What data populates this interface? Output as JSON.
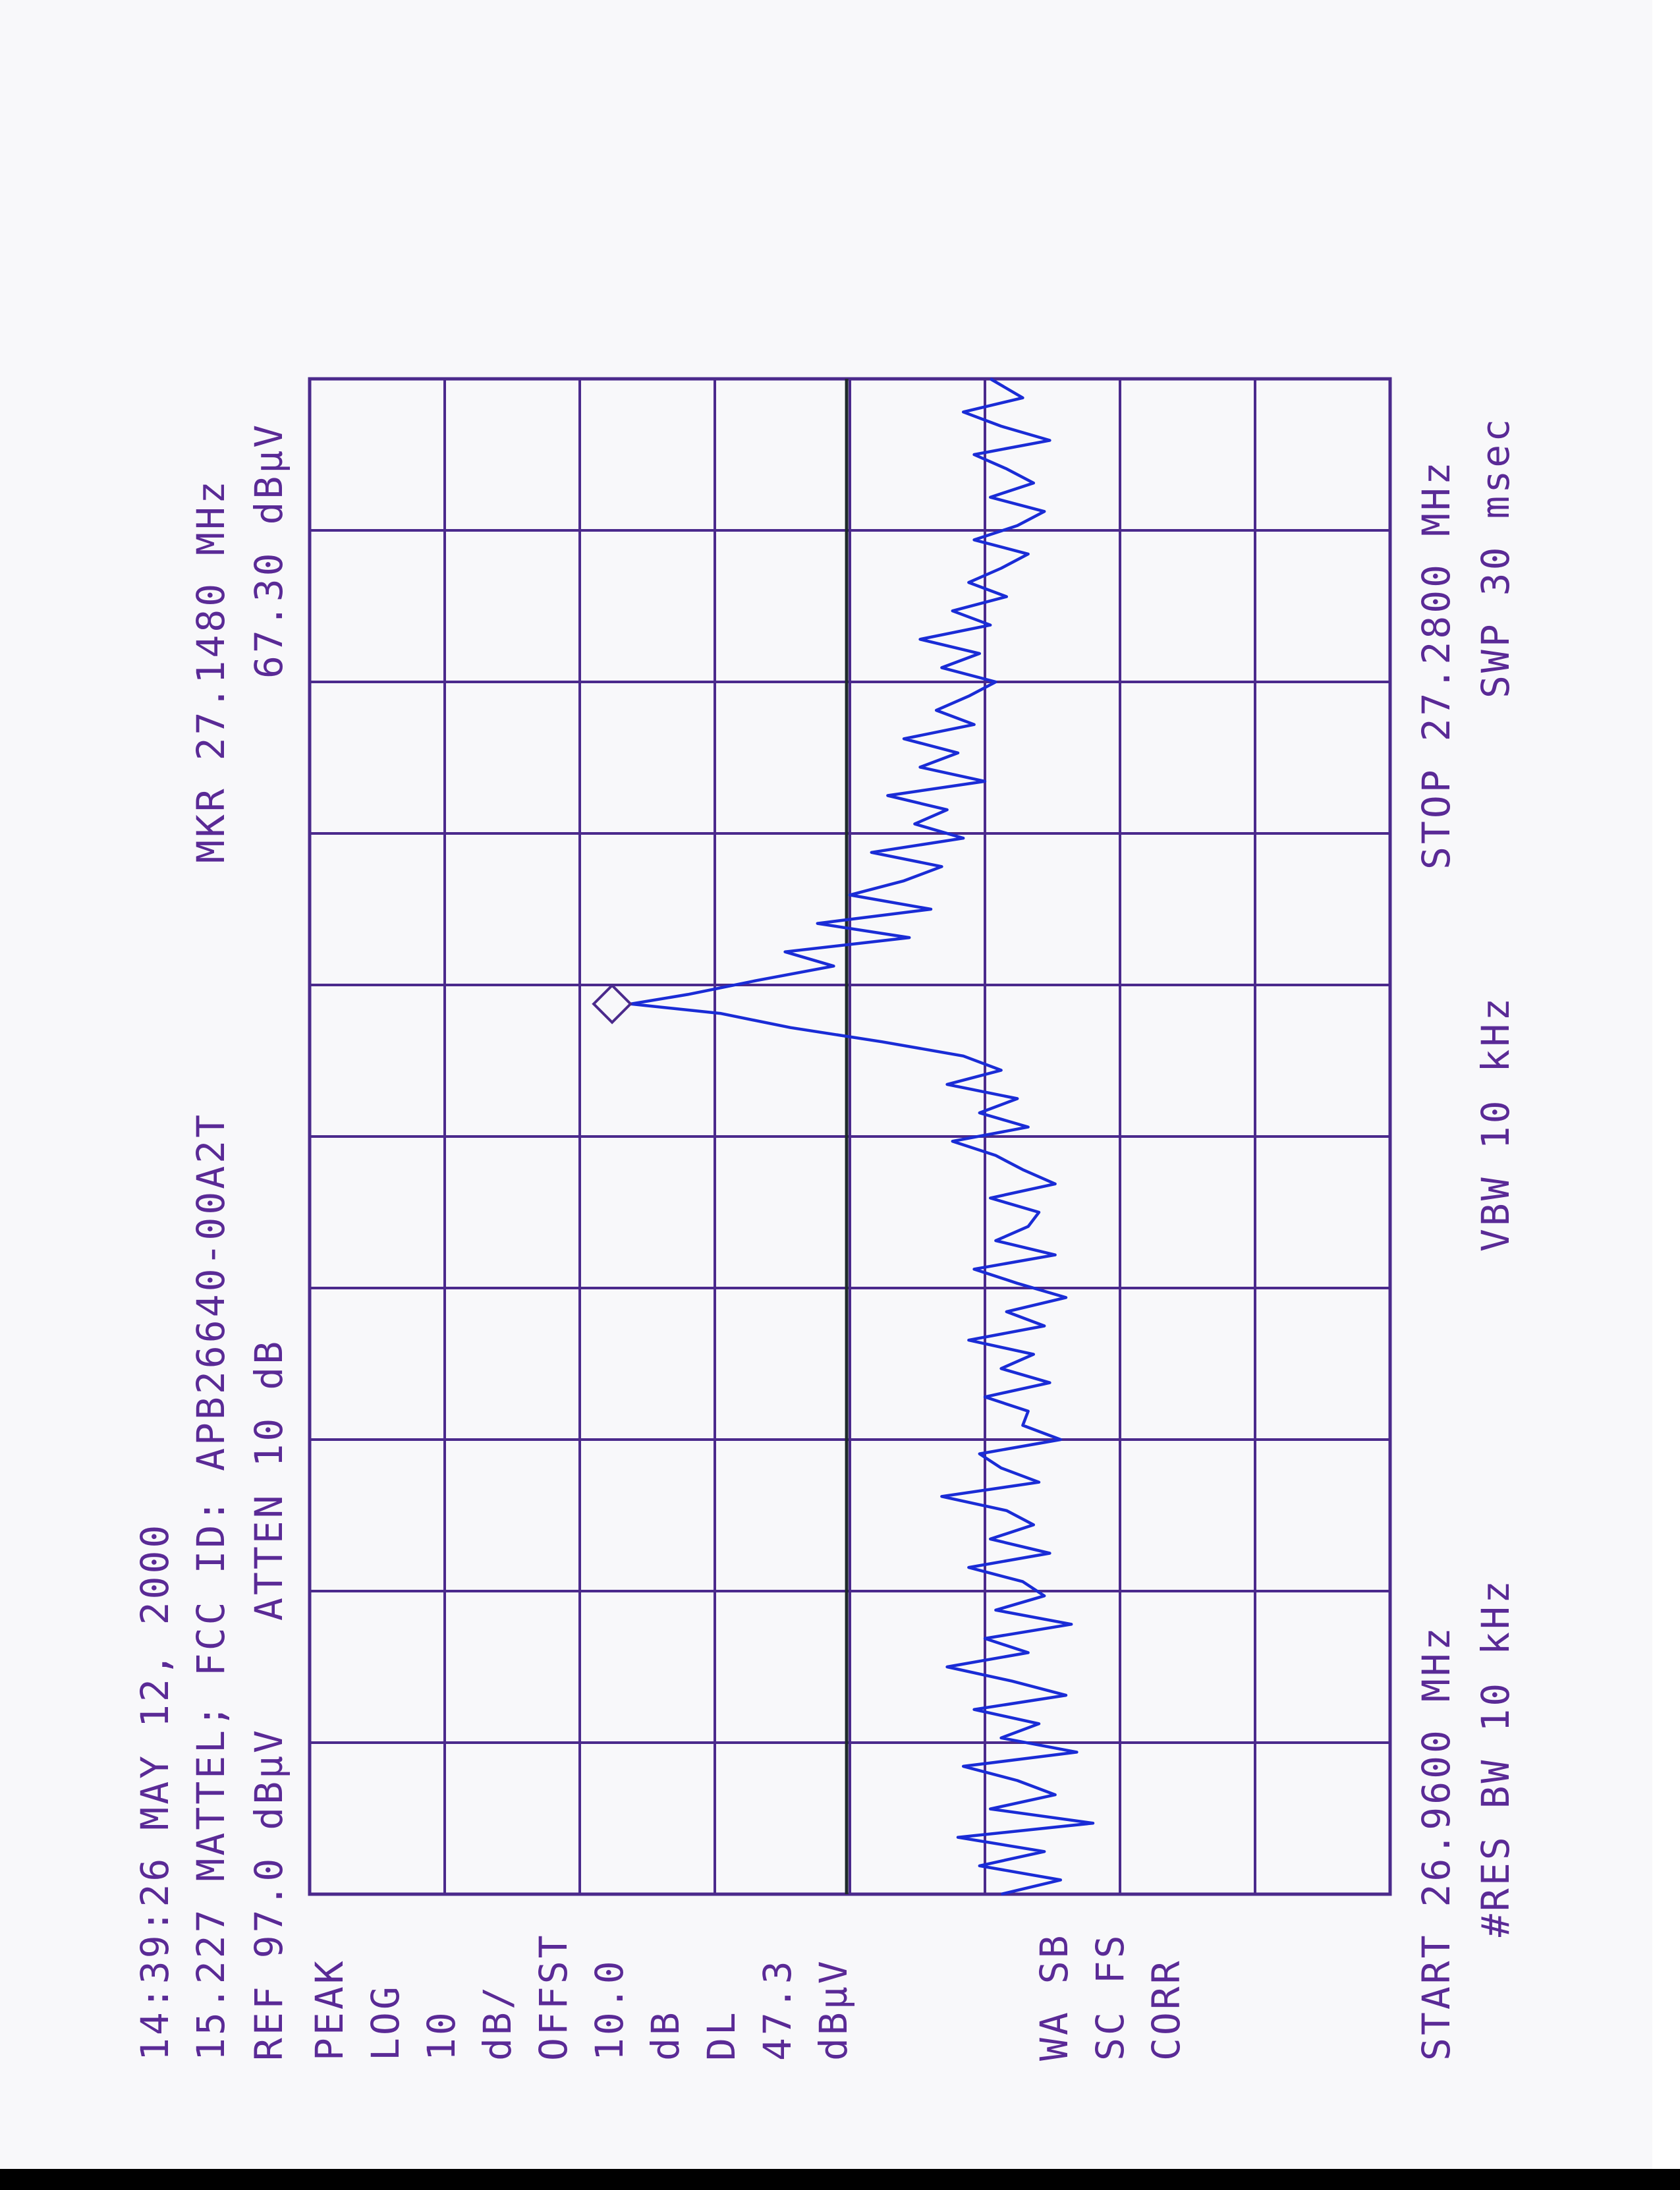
{
  "header": {
    "timestamp": "14:39:26 MAY 12, 2000",
    "line2": "15.227 MATTEL; FCC ID: APB26640-00A2T",
    "marker": "MKR 27.1480 MHz",
    "ref": "REF 97.0 dBμV",
    "atten": "ATTEN 10 dB",
    "marker_level": "67.30 dBμV"
  },
  "side_labels": [
    "PEAK",
    "LOG",
    "10",
    "dB/",
    "OFFST",
    "10.0",
    "dB",
    "DL",
    "47.3",
    "dBμV"
  ],
  "side_labels_lower": [
    "WA SB",
    "SC FS",
    "CORR"
  ],
  "footer": {
    "start": "START 26.9600 MHz",
    "res_bw": "#RES BW 10 kHz",
    "vbw": "VBW 10 kHz",
    "stop": "STOP 27.2800 MHz",
    "swp": "SWP 30 msec"
  },
  "colors": {
    "grid": "#4b2a8c",
    "trace": "#1a2cd6",
    "text": "#5a2a96",
    "display_line": "#1d2a2a"
  },
  "chart_data": {
    "type": "line",
    "title": "15.227 MATTEL; FCC ID: APB26640-00A2T",
    "xlabel": "",
    "ylabel": "",
    "x_unit": "MHz",
    "y_unit": "dBμV",
    "xlim": [
      26.96,
      27.28
    ],
    "ylim": [
      -3.0,
      97.0
    ],
    "grid": true,
    "display_line": 47.3,
    "marker": {
      "x": 27.148,
      "y": 67.3
    },
    "series": [
      {
        "x": [
          26.96,
          26.963,
          26.966,
          26.969,
          26.972,
          26.975,
          26.978,
          26.981,
          26.984,
          26.987,
          26.99,
          26.993,
          26.996,
          26.999,
          27.002,
          27.005,
          27.008,
          27.011,
          27.014,
          27.017,
          27.02,
          27.023,
          27.026,
          27.029,
          27.032,
          27.035,
          27.038,
          27.041,
          27.044,
          27.047,
          27.05,
          27.053,
          27.056,
          27.059,
          27.062,
          27.065,
          27.068,
          27.071,
          27.074,
          27.077,
          27.08,
          27.083,
          27.086,
          27.089,
          27.092,
          27.095,
          27.098,
          27.101,
          27.104,
          27.107,
          27.11,
          27.113,
          27.116,
          27.119,
          27.122,
          27.125,
          27.128,
          27.131,
          27.134,
          27.137,
          27.14,
          27.143,
          27.146,
          27.148,
          27.15,
          27.153,
          27.156,
          27.159,
          27.162,
          27.165,
          27.168,
          27.171,
          27.174,
          27.177,
          27.18,
          27.183,
          27.186,
          27.189,
          27.192,
          27.195,
          27.198,
          27.201,
          27.204,
          27.207,
          27.21,
          27.213,
          27.216,
          27.219,
          27.222,
          27.225,
          27.228,
          27.231,
          27.234,
          27.237,
          27.24,
          27.243,
          27.246,
          27.249,
          27.252,
          27.255,
          27.258,
          27.261,
          27.264,
          27.267,
          27.27,
          27.273,
          27.276,
          27.28
        ],
        "y": [
          33.0,
          27.5,
          35.0,
          29.0,
          37.0,
          24.5,
          34.0,
          28.0,
          31.5,
          36.5,
          26.0,
          33.0,
          29.5,
          35.5,
          27.0,
          32.0,
          38.0,
          30.5,
          34.5,
          26.5,
          33.5,
          29.0,
          31.0,
          36.0,
          28.5,
          34.0,
          30.0,
          32.5,
          38.5,
          29.5,
          33.0,
          35.0,
          27.5,
          31.0,
          30.5,
          34.5,
          28.5,
          33.0,
          30.0,
          36.0,
          29.0,
          32.5,
          27.0,
          31.5,
          35.5,
          28.0,
          33.5,
          30.5,
          29.5,
          34.0,
          28.0,
          31.0,
          33.5,
          37.5,
          30.5,
          35.0,
          31.5,
          38.0,
          33.0,
          36.5,
          44.0,
          52.5,
          59.0,
          67.3,
          62.0,
          55.5,
          48.5,
          53.0,
          41.5,
          50.0,
          39.5,
          47.0,
          42.0,
          38.5,
          45.0,
          36.5,
          41.0,
          38.0,
          43.5,
          34.5,
          40.5,
          37.0,
          42.0,
          35.5,
          39.0,
          36.0,
          33.5,
          38.5,
          35.0,
          40.5,
          34.0,
          37.5,
          32.5,
          36.0,
          33.0,
          30.5,
          35.5,
          31.5,
          29.0,
          34.0,
          30.0,
          32.5,
          35.5,
          28.5,
          33.0,
          36.5,
          31.0,
          34.0
        ]
      }
    ]
  }
}
